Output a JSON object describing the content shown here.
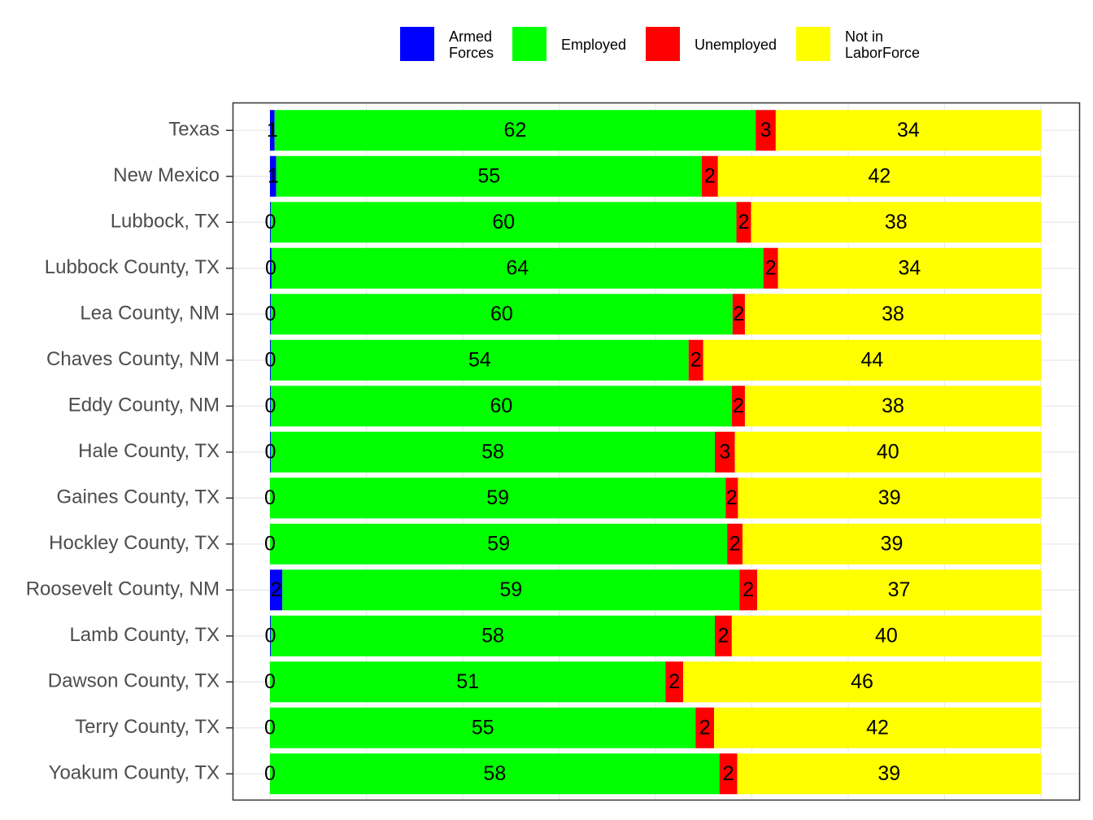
{
  "chart_data": {
    "type": "stacked-barh",
    "categories": [
      "Texas",
      "New Mexico",
      "Lubbock, TX",
      "Lubbock County, TX",
      "Lea County, NM",
      "Chaves County, NM",
      "Eddy County, NM",
      "Hale County, TX",
      "Gaines County, TX",
      "Hockley County, TX",
      "Roosevelt County, NM",
      "Lamb County, TX",
      "Dawson County, TX",
      "Terry County, TX",
      "Yoakum County, TX"
    ],
    "series": [
      {
        "name": "Armed Forces",
        "color": "#0000ff",
        "values": [
          0.6,
          0.8,
          0.1,
          0.2,
          0.1,
          0.1,
          0.1,
          0.1,
          0.0,
          0.0,
          1.6,
          0.1,
          0.0,
          0.0,
          0.0
        ],
        "value_labels": [
          "1",
          "1",
          "0",
          "0",
          "0",
          "0",
          "0",
          "0",
          "0",
          "0",
          "2",
          "0",
          "0",
          "0",
          "0"
        ]
      },
      {
        "name": "Employed",
        "color": "#00ff00",
        "values": [
          62.4,
          55.2,
          60.4,
          63.8,
          59.9,
          54.2,
          59.8,
          57.6,
          59.1,
          59.3,
          59.3,
          57.6,
          51.3,
          55.2,
          58.3
        ],
        "value_labels": [
          "62",
          "55",
          "60",
          "64",
          "60",
          "54",
          "60",
          "58",
          "59",
          "59",
          "59",
          "58",
          "51",
          "55",
          "58"
        ]
      },
      {
        "name": "Unemployed",
        "color": "#ff0000",
        "values": [
          2.6,
          2.1,
          1.9,
          1.9,
          1.6,
          1.9,
          1.7,
          2.6,
          1.6,
          2.0,
          2.3,
          2.2,
          2.3,
          2.4,
          2.3
        ],
        "value_labels": [
          "3",
          "2",
          "2",
          "2",
          "2",
          "2",
          "2",
          "3",
          "2",
          "2",
          "2",
          "2",
          "2",
          "2",
          "2"
        ]
      },
      {
        "name": "Not in LaborForce",
        "color": "#ffff00",
        "values": [
          34.4,
          41.9,
          37.6,
          34.1,
          38.4,
          43.8,
          38.4,
          39.7,
          39.3,
          38.7,
          36.8,
          40.1,
          46.4,
          42.4,
          39.4
        ],
        "value_labels": [
          "34",
          "42",
          "38",
          "34",
          "38",
          "44",
          "38",
          "40",
          "39",
          "39",
          "37",
          "40",
          "46",
          "42",
          "39"
        ]
      }
    ],
    "xlim": [
      0,
      100
    ],
    "xticks": [
      0,
      12.5,
      25,
      37.5,
      50,
      62.5,
      75,
      87.5,
      100
    ],
    "grid": true
  }
}
